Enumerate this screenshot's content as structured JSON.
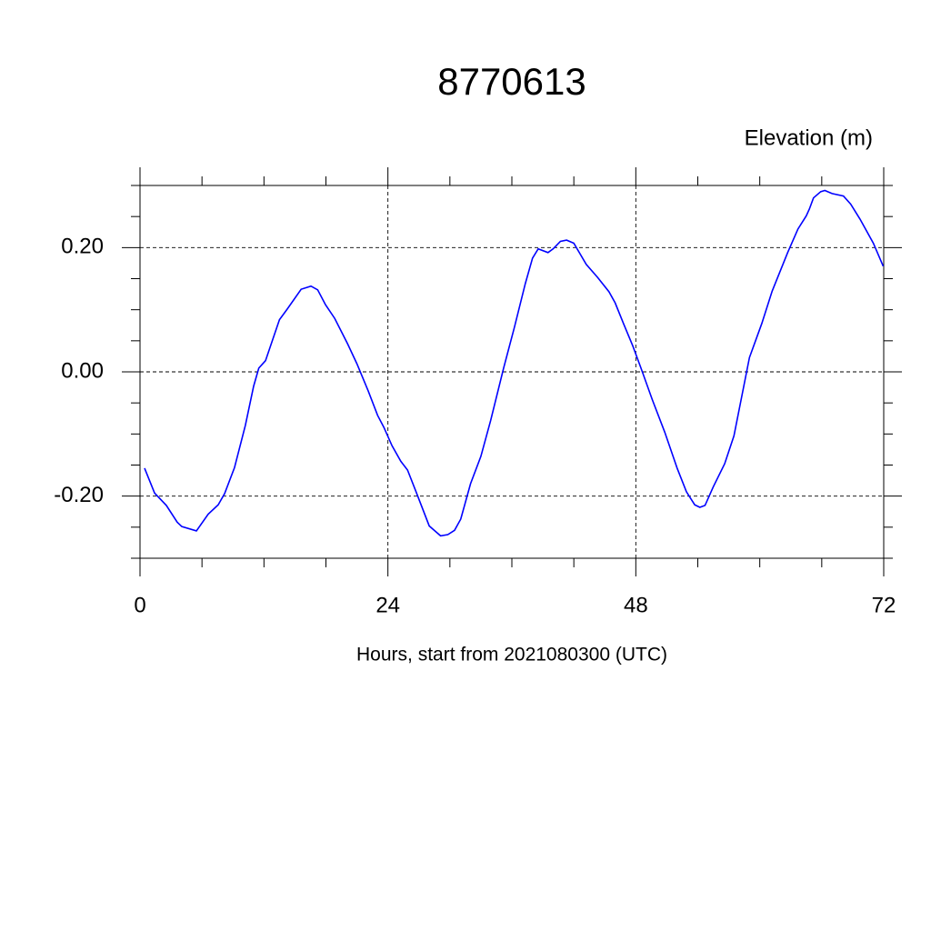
{
  "chart_data": {
    "type": "line",
    "title": "8770613",
    "subtitle": "Elevation (m)",
    "x_label": "Hours, start from 2021080300 (UTC)",
    "xlim": [
      0,
      72
    ],
    "xticks": [
      0,
      24,
      48,
      72
    ],
    "ylim": [
      -0.3,
      0.3
    ],
    "yticks": [
      {
        "value": -0.2,
        "label": "-0.20"
      },
      {
        "value": 0,
        "label": "0.00"
      },
      {
        "value": 0.2,
        "label": "0.20"
      }
    ],
    "grid": true,
    "series": [
      {
        "color": "#0000ff",
        "x": [
          0.44,
          1.41,
          2.55,
          3.6,
          4.05,
          5.46,
          6.6,
          7.57,
          8.19,
          9.15,
          10.2,
          11.0,
          11.5,
          12.15,
          13.5,
          14.25,
          15.6,
          16.55,
          17.2,
          17.96,
          18.85,
          20.1,
          21.0,
          22.1,
          23.0,
          23.6,
          24.4,
          25.25,
          25.9,
          26.7,
          28.0,
          29.1,
          29.8,
          30.45,
          31.05,
          32.0,
          33.0,
          33.95,
          35.2,
          36.25,
          37.3,
          38.0,
          38.55,
          39.5,
          40.0,
          40.7,
          41.3,
          42.0,
          43.2,
          44.3,
          45.4,
          46.0,
          46.8,
          47.7,
          48.5,
          49.6,
          50.8,
          52.0,
          52.9,
          53.7,
          54.2,
          54.7,
          55.5,
          56.6,
          57.5,
          59.0,
          60.2,
          61.2,
          62.7,
          63.7,
          64.5,
          64.8,
          65.2,
          65.9,
          66.3,
          67.0,
          68.1,
          68.8,
          69.7,
          71.0,
          71.95
        ],
        "values": [
          -0.155,
          -0.195,
          -0.215,
          -0.242,
          -0.249,
          -0.256,
          -0.229,
          -0.214,
          -0.196,
          -0.154,
          -0.086,
          -0.023,
          0.006,
          0.018,
          0.084,
          0.101,
          0.133,
          0.138,
          0.132,
          0.108,
          0.086,
          0.045,
          0.013,
          -0.031,
          -0.07,
          -0.089,
          -0.119,
          -0.144,
          -0.158,
          -0.192,
          -0.248,
          -0.264,
          -0.262,
          -0.255,
          -0.237,
          -0.18,
          -0.136,
          -0.078,
          0.006,
          0.072,
          0.142,
          0.183,
          0.198,
          0.192,
          0.198,
          0.21,
          0.212,
          0.207,
          0.173,
          0.152,
          0.129,
          0.111,
          0.078,
          0.042,
          0.006,
          -0.045,
          -0.097,
          -0.155,
          -0.193,
          -0.214,
          -0.218,
          -0.215,
          -0.185,
          -0.148,
          -0.103,
          0.023,
          0.078,
          0.13,
          0.192,
          0.23,
          0.251,
          0.262,
          0.28,
          0.29,
          0.292,
          0.287,
          0.283,
          0.27,
          0.246,
          0.207,
          0.17
        ]
      }
    ]
  }
}
